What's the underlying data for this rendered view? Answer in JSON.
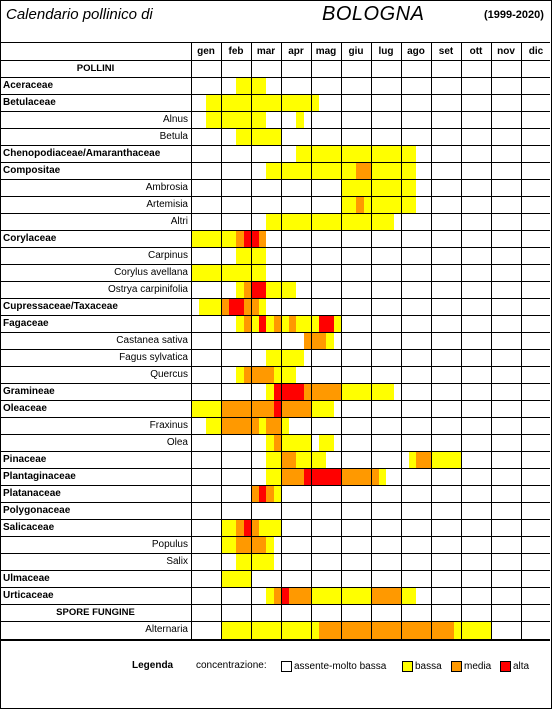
{
  "header": {
    "title": "Calendario pollinico di",
    "city": "BOLOGNA",
    "years": "(1999-2020)"
  },
  "months": [
    "gen",
    "feb",
    "mar",
    "apr",
    "mag",
    "giu",
    "lug",
    "ago",
    "set",
    "ott",
    "nov",
    "dic"
  ],
  "colors": {
    "a": "#ffffff",
    "b": "#ffff00",
    "m": "#ff9900",
    "h": "#ff0000"
  },
  "rows": [
    {
      "label": "POLLINI",
      "kind": "section",
      "pattern": ""
    },
    {
      "label": "Aceraceae",
      "kind": "family",
      "pattern": "......bbbb.............................."
    },
    {
      "label": "Betulaceae",
      "kind": "family",
      "pattern": "..bbbbbbbbbbbbbbb......................."
    },
    {
      "label": "Alnus",
      "kind": "species",
      "pattern": "..bbbbbbbb....b........................."
    },
    {
      "label": "Betula",
      "kind": "species",
      "pattern": "......bbbbbb............................"
    },
    {
      "label": "Chenopodiaceae/Amaranthaceae",
      "kind": "family",
      "pattern": "..............bbbbbbbbbbbbbbbb.........."
    },
    {
      "label": "Compositae",
      "kind": "family",
      "pattern": "..........bbbbbbbbbbbbmmbbbbbb.........."
    },
    {
      "label": "Ambrosia",
      "kind": "species",
      "pattern": "....................bbbbbbbbbb.........."
    },
    {
      "label": "Artemisia",
      "kind": "species",
      "pattern": "....................bbmbbbbbbb.........."
    },
    {
      "label": "Altri",
      "kind": "species",
      "pattern": "..........bbbbbbbbbbbbbbbbb............."
    },
    {
      "label": "Corylaceae",
      "kind": "family",
      "pattern": "bbbbbbmhhm.............................."
    },
    {
      "label": "Carpinus",
      "kind": "species",
      "pattern": "......bbbb.............................."
    },
    {
      "label": "Corylus avellana",
      "kind": "species",
      "pattern": "bbbbbbbbbb.............................."
    },
    {
      "label": "Ostrya carpinifolia",
      "kind": "species",
      "pattern": "......bmhhbbbb.........................."
    },
    {
      "label": "Cupressaceae/Taxaceae",
      "kind": "family",
      "pattern": ".bbbmhhmmb.............................."
    },
    {
      "label": "Fagaceae",
      "kind": "family",
      "pattern": "......bmbhbmbmbbbhhb...................."
    },
    {
      "label": "Castanea sativa",
      "kind": "species",
      "pattern": "...............mmmb....................."
    },
    {
      "label": "Fagus sylvatica",
      "kind": "species",
      "pattern": "..........bbbbb........................."
    },
    {
      "label": "Quercus",
      "kind": "species",
      "pattern": "......bmmmmbbb.........................."
    },
    {
      "label": "Gramineae",
      "kind": "family",
      "pattern": "..........bhhhhmmmmmbbbbbbb............."
    },
    {
      "label": "Oleaceae",
      "kind": "family",
      "pattern": "bbbbmmmmmmmhmmmmbbb....................."
    },
    {
      "label": "Fraxinus",
      "kind": "species",
      "pattern": "..bbmmmmmbmmb..........................."
    },
    {
      "label": "Olea",
      "kind": "species",
      "pattern": "..........bmbbbb.bb....................."
    },
    {
      "label": "Pinaceae",
      "kind": "family",
      "pattern": "..........bbmmbbbb...........bmmbbbb...."
    },
    {
      "label": "Plantaginaceae",
      "kind": "family",
      "pattern": "..........bbmmmhhhhhmmmmmb.............."
    },
    {
      "label": "Platanaceae",
      "kind": "family",
      "pattern": "........mhmb............................"
    },
    {
      "label": "Polygonaceae",
      "kind": "family",
      "pattern": ""
    },
    {
      "label": "Salicaceae",
      "kind": "family",
      "pattern": "....bbmhmbbb............................"
    },
    {
      "label": "Populus",
      "kind": "species",
      "pattern": "....bbmmmmb............................."
    },
    {
      "label": "Salix",
      "kind": "species",
      "pattern": "......bbbbb............................."
    },
    {
      "label": "Ulmaceae",
      "kind": "family",
      "pattern": "....bbbb................................"
    },
    {
      "label": "Urticaceae",
      "kind": "family",
      "pattern": "..........bmhmmmbbbbbbbbmmmmbb.........."
    },
    {
      "label": "SPORE FUNGINE",
      "kind": "section",
      "pattern": ""
    },
    {
      "label": "Alternaria",
      "kind": "species",
      "pattern": "....bbbbbbbbbbbbbmmmmmmmmmmmmmmmmmmbbbbb"
    }
  ],
  "legend": {
    "title": "Legenda",
    "concentration_label": "concentrazione:",
    "items": [
      {
        "label": "assente-molto bassa",
        "color": "#ffffff"
      },
      {
        "label": "bassa",
        "color": "#ffff00"
      },
      {
        "label": "media",
        "color": "#ff9900"
      },
      {
        "label": "alta",
        "color": "#ff0000"
      }
    ]
  }
}
